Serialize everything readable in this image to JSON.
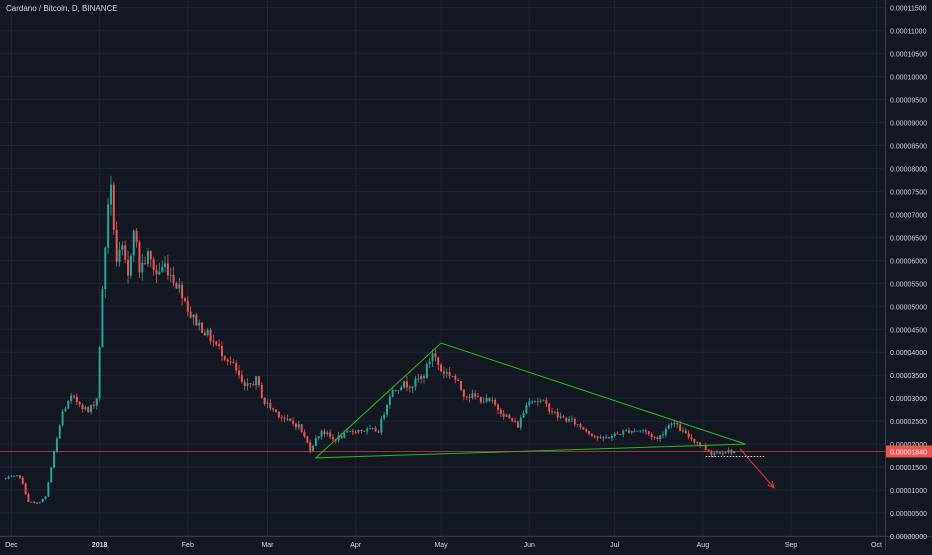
{
  "chart_data": {
    "type": "candlestick",
    "title": "Cardano / Bitcoin, D, BINANCE",
    "y_ticks": [
      "0.00011500",
      "0.00011000",
      "0.00010500",
      "0.00010000",
      "0.00009500",
      "0.00009000",
      "0.00008500",
      "0.00008000",
      "0.00007500",
      "0.00007000",
      "0.00006500",
      "0.00006000",
      "0.00005500",
      "0.00005000",
      "0.00004500",
      "0.00004000",
      "0.00003500",
      "0.00003000",
      "0.00002500",
      "0.00002000",
      "0.00001500",
      "0.00001000",
      "0.00000500",
      "0.00000000"
    ],
    "ylim": [
      0,
      0.00011667
    ],
    "x_ticks": [
      "Dec",
      "2018",
      "Feb",
      "Mar",
      "Apr",
      "May",
      "Jun",
      "Jul",
      "Aug",
      "Sep",
      "Oct"
    ],
    "x_tick_dates": [
      "2017-12-01",
      "2018-01-01",
      "2018-02-01",
      "2018-03-01",
      "2018-04-01",
      "2018-05-01",
      "2018-06-01",
      "2018-07-01",
      "2018-08-01",
      "2018-09-01",
      "2018-10-01"
    ],
    "xlim": [
      "2017-11-27",
      "2018-10-04"
    ],
    "last_price_label": "0.00001840",
    "last_price": 1.84e-05,
    "colors": {
      "background": "#131722",
      "up": "#26a69a",
      "down": "#ef5350",
      "trendline": "#1fbd1f",
      "projection_arrow": "#e53935",
      "price_line": "#ef5350",
      "grid": "#1f2434",
      "text": "#d1d4dc"
    },
    "anchors": [
      [
        "2017-11-29",
        1.25e-05
      ],
      [
        "2017-12-04",
        1.3e-05
      ],
      [
        "2017-12-07",
        7.5e-06
      ],
      [
        "2017-12-10",
        7e-06
      ],
      [
        "2017-12-13",
        8.5e-06
      ],
      [
        "2017-12-16",
        1.8e-05
      ],
      [
        "2017-12-19",
        2.7e-05
      ],
      [
        "2017-12-22",
        3e-05
      ],
      [
        "2017-12-25",
        2.9e-05
      ],
      [
        "2017-12-28",
        2.7e-05
      ],
      [
        "2017-12-31",
        3e-05
      ],
      [
        "2018-01-02",
        5.3e-05
      ],
      [
        "2018-01-04",
        7.3e-05
      ],
      [
        "2018-01-05",
        7.5e-05
      ],
      [
        "2018-01-07",
        6e-05
      ],
      [
        "2018-01-09",
        6.2e-05
      ],
      [
        "2018-01-11",
        5.6e-05
      ],
      [
        "2018-01-13",
        6.8e-05
      ],
      [
        "2018-01-15",
        5.8e-05
      ],
      [
        "2018-01-18",
        6.1e-05
      ],
      [
        "2018-01-21",
        5.7e-05
      ],
      [
        "2018-01-24",
        5.9e-05
      ],
      [
        "2018-01-27",
        5.6e-05
      ],
      [
        "2018-01-30",
        5.3e-05
      ],
      [
        "2018-02-02",
        4.8e-05
      ],
      [
        "2018-02-05",
        4.6e-05
      ],
      [
        "2018-02-09",
        4.3e-05
      ],
      [
        "2018-02-13",
        4e-05
      ],
      [
        "2018-02-17",
        3.7e-05
      ],
      [
        "2018-02-21",
        3.2e-05
      ],
      [
        "2018-02-25",
        3.4e-05
      ],
      [
        "2018-02-28",
        2.9e-05
      ],
      [
        "2018-03-04",
        2.7e-05
      ],
      [
        "2018-03-08",
        2.5e-05
      ],
      [
        "2018-03-12",
        2.4e-05
      ],
      [
        "2018-03-16",
        1.9e-05
      ],
      [
        "2018-03-20",
        2.3e-05
      ],
      [
        "2018-03-24",
        2.1e-05
      ],
      [
        "2018-03-28",
        2.2e-05
      ],
      [
        "2018-04-01",
        2.3e-05
      ],
      [
        "2018-04-05",
        2.3e-05
      ],
      [
        "2018-04-09",
        2.3e-05
      ],
      [
        "2018-04-13",
        3.1e-05
      ],
      [
        "2018-04-17",
        3.3e-05
      ],
      [
        "2018-04-21",
        3.3e-05
      ],
      [
        "2018-04-25",
        3.5e-05
      ],
      [
        "2018-04-28",
        4e-05
      ],
      [
        "2018-05-01",
        3.6e-05
      ],
      [
        "2018-05-05",
        3.5e-05
      ],
      [
        "2018-05-09",
        3.1e-05
      ],
      [
        "2018-05-14",
        3e-05
      ],
      [
        "2018-05-19",
        2.9e-05
      ],
      [
        "2018-05-24",
        2.6e-05
      ],
      [
        "2018-05-28",
        2.4e-05
      ],
      [
        "2018-06-01",
        3e-05
      ],
      [
        "2018-06-06",
        2.9e-05
      ],
      [
        "2018-06-11",
        2.6e-05
      ],
      [
        "2018-06-16",
        2.5e-05
      ],
      [
        "2018-06-21",
        2.3e-05
      ],
      [
        "2018-06-26",
        2.1e-05
      ],
      [
        "2018-07-01",
        2.2e-05
      ],
      [
        "2018-07-06",
        2.3e-05
      ],
      [
        "2018-07-11",
        2.3e-05
      ],
      [
        "2018-07-16",
        2.1e-05
      ],
      [
        "2018-07-21",
        2.5e-05
      ],
      [
        "2018-07-26",
        2.2e-05
      ],
      [
        "2018-07-31",
        2e-05
      ],
      [
        "2018-08-04",
        1.8e-05
      ],
      [
        "2018-08-08",
        1.85e-05
      ],
      [
        "2018-08-12",
        1.84e-05
      ]
    ],
    "annotations": {
      "triangle": [
        [
          "2018-03-18",
          1.7e-05
        ],
        [
          "2018-05-01",
          4.2e-05
        ],
        [
          "2018-08-16",
          2e-05
        ]
      ],
      "arrow": [
        [
          "2018-08-14",
          1.9e-05
        ],
        [
          "2018-08-26",
          1.05e-05
        ]
      ],
      "dotted_support": [
        [
          "2018-08-02",
          1.73e-05
        ],
        [
          "2018-08-23",
          1.73e-05
        ]
      ]
    }
  }
}
